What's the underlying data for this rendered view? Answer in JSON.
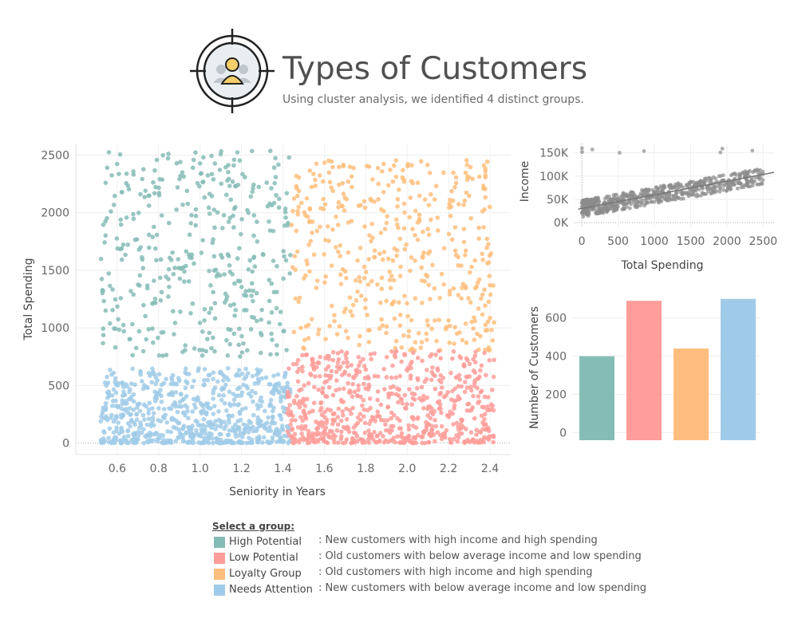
{
  "header": {
    "title": "Types of Customers",
    "subtitle": "Using cluster analysis, we identified 4 distinct groups.",
    "logo_icon": "target-customer-icon"
  },
  "colors": {
    "high_potential": "#86bcb6",
    "low_potential": "#ff9d9a",
    "loyalty_group": "#ffbe7d",
    "needs_attention": "#a0cbe8",
    "trend_points": "#8c8c8c"
  },
  "legend": {
    "title": "Select a group:",
    "items": [
      {
        "name": "High Potential",
        "description": ": New customers with high income and high spending",
        "color": "#86bcb6"
      },
      {
        "name": "Low Potential",
        "description": ": Old customers with below average income and low spending",
        "color": "#ff9d9a"
      },
      {
        "name": "Loyalty Group",
        "description": ": Old customers with high income and high spending",
        "color": "#ffbe7d"
      },
      {
        "name": "Needs Attention",
        "description": ": New customers with below average income and low spending",
        "color": "#a0cbe8"
      }
    ]
  },
  "chart_data": [
    {
      "type": "scatter",
      "xlabel": "Seniority in Years",
      "ylabel": "Total Spending",
      "xlim": [
        0.4,
        2.5
      ],
      "ylim": [
        -100,
        2600
      ],
      "xticks": [
        "0.6",
        "0.8",
        "1.0",
        "1.2",
        "1.4",
        "1.6",
        "1.8",
        "2.0",
        "2.2",
        "2.4"
      ],
      "yticks": [
        "0",
        "500",
        "1000",
        "1500",
        "2000",
        "2500"
      ],
      "grid": true,
      "series": [
        {
          "name": "High Potential",
          "x_range": [
            0.52,
            1.44
          ],
          "y_range": [
            750,
            2540
          ],
          "count": 400
        },
        {
          "name": "Needs Attention",
          "x_range": [
            0.52,
            1.44
          ],
          "y_range": [
            0,
            650
          ],
          "count": 700
        },
        {
          "name": "Loyalty Group",
          "x_range": [
            1.44,
            2.42
          ],
          "y_range": [
            800,
            2460
          ],
          "count": 440
        },
        {
          "name": "Low Potential",
          "x_range": [
            1.42,
            2.42
          ],
          "y_range": [
            0,
            800
          ],
          "count": 690
        }
      ]
    },
    {
      "type": "scatter",
      "xlabel": "Total Spending",
      "ylabel": "Income",
      "xlim": [
        -100,
        2650
      ],
      "ylim": [
        -10000,
        170000
      ],
      "xticks": [
        "0",
        "500",
        "1000",
        "1500",
        "2000",
        "2500"
      ],
      "yticks": [
        "0K",
        "50K",
        "100K",
        "150K"
      ],
      "trend_line": {
        "from": [
          -50,
          29000
        ],
        "to": [
          2650,
          108000
        ]
      },
      "grid": true
    },
    {
      "type": "bar",
      "ylabel": "Number of Customers",
      "categories": [
        "High Potential",
        "Low Potential",
        "Loyalty Group",
        "Needs Attention"
      ],
      "values": [
        400,
        690,
        440,
        700
      ],
      "ylim": [
        -40,
        720
      ],
      "yticks": [
        "0",
        "200",
        "400",
        "600"
      ],
      "grid": true
    }
  ]
}
